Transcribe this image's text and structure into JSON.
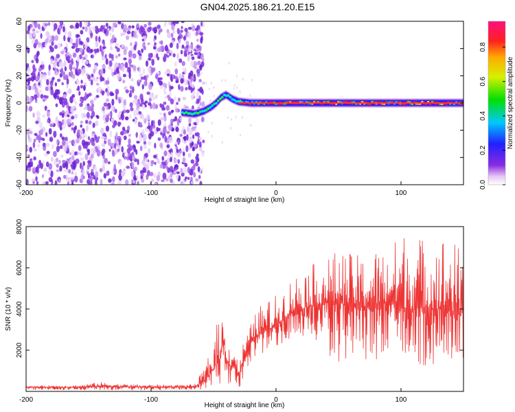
{
  "title": "GN04.2025.186.21.20.E15",
  "chart_data": [
    {
      "type": "heatmap",
      "title": "GN04.2025.186.21.20.E15",
      "xlabel": "Height of straight line (km)",
      "ylabel": "Frequency (Hz)",
      "xlim": [
        -200,
        150
      ],
      "ylim": [
        -60,
        60
      ],
      "xticks": [
        -200,
        -100,
        0,
        100
      ],
      "yticks": [
        -60,
        -40,
        -20,
        0,
        20,
        40,
        60
      ],
      "colorbar": {
        "label": "Normalized spectral amplitude",
        "range": [
          0.0,
          0.95
        ],
        "ticks": [
          "0.0",
          "0.2",
          "0.4",
          "0.6",
          "0.8"
        ],
        "colormap": "rainbow (white-violet-blue-cyan-green-yellow-red-magenta)"
      },
      "features": {
        "noise_region_x": [
          -200,
          -62
        ],
        "signal_onset_x": -75,
        "signal_track": [
          {
            "x": -75,
            "y": -7
          },
          {
            "x": -65,
            "y": -8
          },
          {
            "x": -58,
            "y": -6
          },
          {
            "x": -52,
            "y": -3
          },
          {
            "x": -48,
            "y": 0
          },
          {
            "x": -44,
            "y": 4
          },
          {
            "x": -40,
            "y": 6
          },
          {
            "x": -35,
            "y": 3
          },
          {
            "x": -30,
            "y": 1
          },
          {
            "x": -20,
            "y": 0
          },
          {
            "x": 0,
            "y": 0
          },
          {
            "x": 50,
            "y": 0
          },
          {
            "x": 100,
            "y": 0
          },
          {
            "x": 150,
            "y": 0
          }
        ],
        "peak_amplitude_region_x": [
          -30,
          150
        ]
      }
    },
    {
      "type": "line",
      "xlabel": "Height of straight line (km)",
      "ylabel": "SNR (10 * v/v)",
      "xlim": [
        -200,
        150
      ],
      "ylim": [
        0,
        8000
      ],
      "xticks": [
        -200,
        -100,
        0,
        100
      ],
      "yticks": [
        2000,
        4000,
        6000,
        8000
      ],
      "color": "#ee3333",
      "series": [
        {
          "x": [
            -200,
            -180,
            -160,
            -140,
            -120,
            -100,
            -80,
            -65,
            -58,
            -52,
            -48,
            -45,
            -42,
            -40,
            -36,
            -33,
            -30,
            -26,
            -22,
            -18,
            -14,
            -10,
            -5,
            0,
            5,
            10,
            15,
            20,
            25,
            30,
            40,
            50,
            60,
            70,
            80,
            90,
            100,
            110,
            120,
            130,
            140,
            150
          ],
          "values": [
            200,
            210,
            200,
            260,
            230,
            210,
            220,
            230,
            450,
            900,
            1300,
            1600,
            2500,
            1600,
            1200,
            1500,
            700,
            1600,
            2100,
            2600,
            2800,
            2900,
            3000,
            3200,
            3500,
            3700,
            3900,
            4000,
            4100,
            4200,
            4300,
            4300,
            4200,
            4100,
            4200,
            4300,
            4100,
            4000,
            4100,
            4000,
            3900,
            3800
          ],
          "upper_envelope": [
            250,
            300,
            320,
            450,
            350,
            340,
            330,
            350,
            1100,
            2000,
            3000,
            4500,
            3200,
            2600,
            2200,
            2100,
            1300,
            2500,
            3000,
            3600,
            4100,
            4300,
            4500,
            4700,
            5000,
            5400,
            5700,
            6000,
            6100,
            6200,
            6500,
            6900,
            6700,
            6600,
            7000,
            6900,
            7800,
            8000,
            7300,
            7800,
            7500,
            6800
          ],
          "lower_envelope": [
            60,
            60,
            60,
            60,
            60,
            60,
            60,
            80,
            100,
            200,
            300,
            300,
            300,
            300,
            200,
            250,
            100,
            600,
            1000,
            1400,
            1600,
            1800,
            2000,
            2100,
            2300,
            2400,
            2500,
            2500,
            2400,
            2200,
            1900,
            1200,
            1700,
            1500,
            1300,
            1500,
            1700,
            1400,
            1200,
            1300,
            1600,
            1500
          ]
        }
      ]
    }
  ]
}
